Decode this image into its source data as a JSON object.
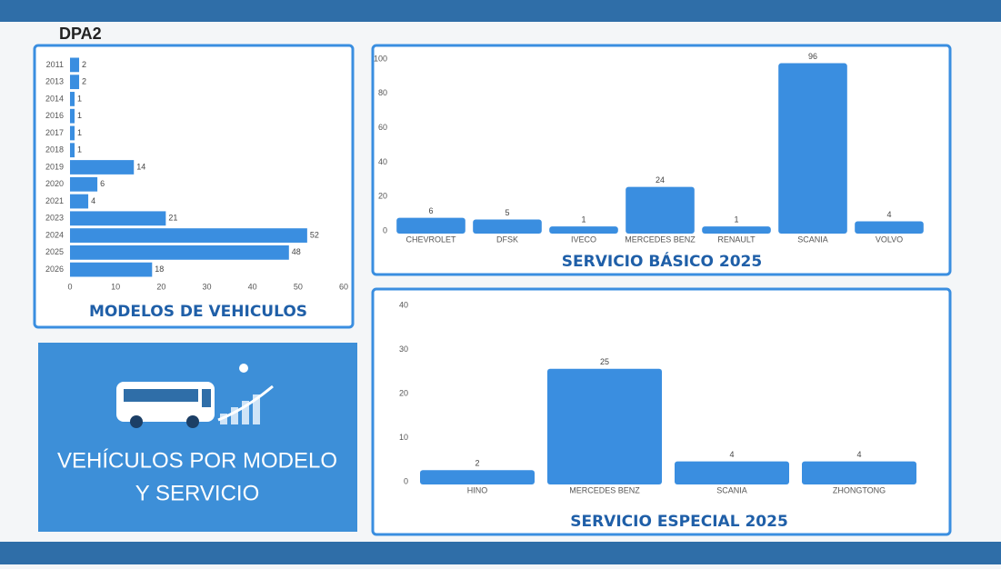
{
  "header": {
    "title": "DPA2"
  },
  "card": {
    "lines": [
      "VEHÍCULOS POR MODELO",
      "Y SERVICIO"
    ]
  },
  "chart_data": [
    {
      "type": "barh",
      "title": "MODELOS DE VEHICULOS",
      "color": "#3a8ee0",
      "categories": [
        "2011",
        "2013",
        "2014",
        "2016",
        "2017",
        "2018",
        "2019",
        "2020",
        "2021",
        "2023",
        "2024",
        "2025",
        "2026"
      ],
      "values": [
        2,
        2,
        1,
        1,
        1,
        1,
        14,
        6,
        4,
        21,
        52,
        48,
        18
      ],
      "xlim": [
        0,
        60
      ],
      "xticks": [
        0,
        10,
        20,
        30,
        40,
        50,
        60
      ]
    },
    {
      "type": "bar",
      "title": "SERVICIO BÁSICO 2025",
      "color": "#3a8ee0",
      "categories": [
        "CHEVROLET",
        "DFSK",
        "IVECO",
        "MERCEDES BENZ",
        "RENAULT",
        "SCANIA",
        "VOLVO"
      ],
      "values": [
        6,
        5,
        1,
        24,
        1,
        96,
        4
      ],
      "ylim": [
        0,
        100
      ],
      "yticks": [
        0,
        20,
        40,
        60,
        80,
        100
      ]
    },
    {
      "type": "bar",
      "title": "SERVICIO ESPECIAL 2025",
      "color": "#3a8ee0",
      "categories": [
        "HINO",
        "MERCEDES BENZ",
        "SCANIA",
        "ZHONGTONG"
      ],
      "values": [
        2,
        25,
        4,
        4
      ],
      "ylim": [
        0,
        40
      ],
      "yticks": [
        0,
        10,
        20,
        30,
        40
      ]
    }
  ]
}
